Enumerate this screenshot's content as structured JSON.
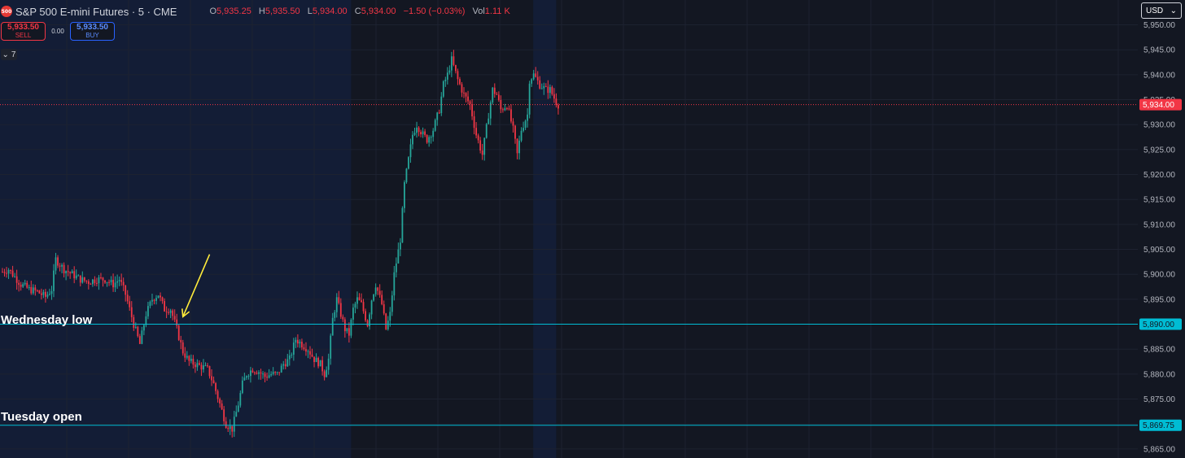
{
  "header": {
    "logo_text": "500",
    "title": "S&P 500 E-mini Futures · 5 · CME",
    "ohlc": {
      "o_label": "O",
      "o": "5,935.25",
      "h_label": "H",
      "h": "5,935.50",
      "l_label": "L",
      "l": "5,934.00",
      "c_label": "C",
      "c": "5,934.00",
      "change": "−1.50 (−0.03%)",
      "vol_label": "Vol",
      "vol": "1.11 K"
    }
  },
  "trade": {
    "sell_price": "5,933.50",
    "sell_label": "SELL",
    "spread": "0.00",
    "buy_price": "5,933.50",
    "buy_label": "BUY"
  },
  "indicators_toggle": "7",
  "currency": "USD",
  "colors": {
    "background": "#131722",
    "session_shade": "#131d36",
    "up": "#26a69a",
    "down": "#f23645",
    "level_line": "#00bcd4",
    "arrow": "#ffeb3b"
  },
  "chart_data": {
    "type": "candlestick",
    "symbol": "S&P 500 E-mini Futures",
    "interval": "5",
    "exchange": "CME",
    "y_axis": {
      "ticks": [
        "5,950.00",
        "5,945.00",
        "5,940.00",
        "5,935.00",
        "5,930.00",
        "5,925.00",
        "5,920.00",
        "5,915.00",
        "5,910.00",
        "5,905.00",
        "5,900.00",
        "5,895.00",
        "5,890.00",
        "5,885.00",
        "5,880.00",
        "5,875.00",
        "5,870.00",
        "5,865.00"
      ],
      "range": [
        5864,
        5954
      ]
    },
    "grid": true,
    "session_shading": [
      [
        0,
        170
      ],
      [
        260,
        270
      ]
    ],
    "price_path": [
      [
        0,
        5900.5
      ],
      [
        3,
        5901
      ],
      [
        6,
        5899.5
      ],
      [
        9,
        5898
      ],
      [
        13,
        5897
      ],
      [
        17,
        5896.5
      ],
      [
        21,
        5895.5
      ],
      [
        24,
        5897
      ],
      [
        26,
        5903
      ],
      [
        30,
        5901
      ],
      [
        34,
        5900
      ],
      [
        38,
        5899
      ],
      [
        42,
        5898.5
      ],
      [
        46,
        5899
      ],
      [
        50,
        5899
      ],
      [
        54,
        5898
      ],
      [
        57,
        5899
      ],
      [
        60,
        5896
      ],
      [
        64,
        5890
      ],
      [
        67,
        5886
      ],
      [
        70,
        5892
      ],
      [
        73,
        5895
      ],
      [
        76,
        5896
      ],
      [
        79,
        5893
      ],
      [
        82,
        5893
      ],
      [
        85,
        5889
      ],
      [
        88,
        5884.5
      ],
      [
        91,
        5882.5
      ],
      [
        94,
        5882
      ],
      [
        97,
        5881.5
      ],
      [
        100,
        5881
      ],
      [
        103,
        5878
      ],
      [
        106,
        5874
      ],
      [
        109,
        5870
      ],
      [
        112,
        5869
      ],
      [
        115,
        5874
      ],
      [
        117,
        5878
      ],
      [
        119,
        5880
      ],
      [
        122,
        5881
      ],
      [
        125,
        5880.5
      ],
      [
        128,
        5879.5
      ],
      [
        131,
        5880
      ],
      [
        134,
        5880
      ],
      [
        137,
        5882
      ],
      [
        140,
        5883
      ],
      [
        143,
        5887
      ],
      [
        146,
        5886
      ],
      [
        149,
        5885
      ],
      [
        152,
        5883
      ],
      [
        155,
        5882
      ],
      [
        157,
        5880
      ],
      [
        159,
        5883
      ],
      [
        161,
        5891
      ],
      [
        163,
        5895
      ],
      [
        165,
        5892
      ],
      [
        167,
        5889
      ],
      [
        169,
        5888
      ],
      [
        171,
        5893
      ],
      [
        173,
        5895
      ],
      [
        175,
        5894
      ],
      [
        178,
        5890
      ],
      [
        180,
        5895
      ],
      [
        182,
        5898
      ],
      [
        185,
        5894
      ],
      [
        187,
        5889
      ],
      [
        189,
        5892
      ],
      [
        191,
        5900
      ],
      [
        194,
        5907
      ],
      [
        196,
        5918
      ],
      [
        198,
        5923
      ],
      [
        200,
        5928
      ],
      [
        202,
        5930
      ],
      [
        205,
        5928
      ],
      [
        207,
        5927
      ],
      [
        210,
        5929
      ],
      [
        213,
        5933
      ],
      [
        215,
        5938
      ],
      [
        217,
        5940
      ],
      [
        219,
        5943
      ],
      [
        222,
        5939
      ],
      [
        225,
        5936
      ],
      [
        228,
        5934
      ],
      [
        231,
        5928
      ],
      [
        234,
        5924
      ],
      [
        237,
        5932
      ],
      [
        239,
        5937
      ],
      [
        241,
        5936
      ],
      [
        243,
        5933
      ],
      [
        246,
        5934
      ],
      [
        249,
        5929
      ],
      [
        251,
        5924
      ],
      [
        253,
        5929
      ],
      [
        256,
        5932
      ],
      [
        257,
        5939
      ],
      [
        259,
        5940
      ],
      [
        262,
        5938
      ],
      [
        265,
        5937
      ],
      [
        267,
        5937
      ],
      [
        270,
        5934.5
      ],
      [
        271,
        5934
      ]
    ],
    "last_price": "5,934.00",
    "levels": [
      {
        "label": "Wednesday low",
        "price": 5890,
        "price_label": "5,890.00"
      },
      {
        "label": "Tuesday open",
        "price": 5869.75,
        "price_label": "5,869.75"
      }
    ],
    "annotations": [
      {
        "type": "arrow",
        "from_price": 5904,
        "to_price": 5891.5,
        "from_bar": 101,
        "to_bar": 88
      }
    ]
  }
}
